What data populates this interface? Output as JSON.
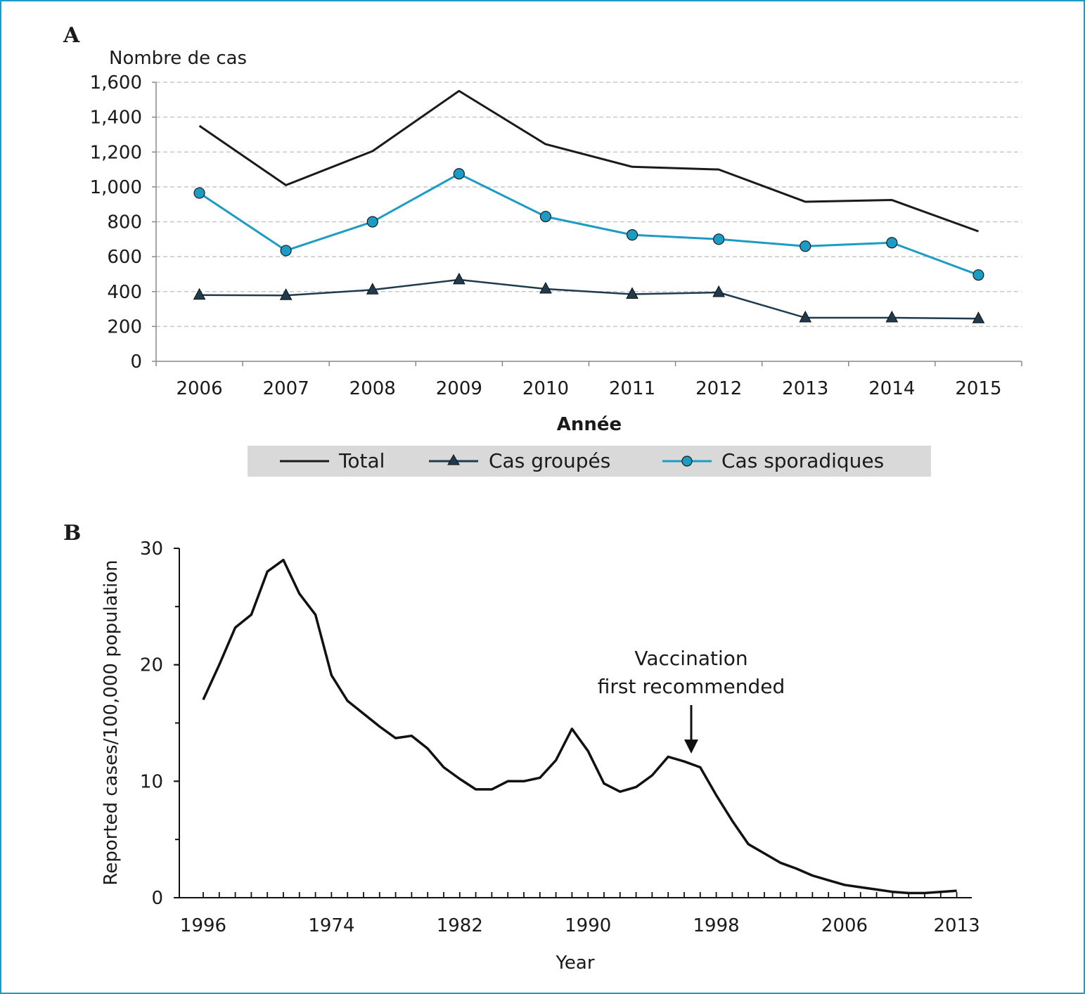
{
  "chart_data": [
    {
      "panel": "A",
      "type": "line",
      "xlabel": "Année",
      "ylabel": "Nombre de cas",
      "categories": [
        "2006",
        "2007",
        "2008",
        "2009",
        "2010",
        "2011",
        "2012",
        "2013",
        "2014",
        "2015"
      ],
      "ylim": [
        0,
        1600
      ],
      "yticks": [
        "0",
        "200",
        "400",
        "600",
        "800",
        "1,000",
        "1,200",
        "1,400",
        "1,600"
      ],
      "ytick_values": [
        0,
        200,
        400,
        600,
        800,
        1000,
        1200,
        1400,
        1600
      ],
      "grid": "horizontal dashed",
      "legend_position": "bottom",
      "series": [
        {
          "name": "Total",
          "marker": "none",
          "color": "#1a1a1a",
          "values": [
            1350,
            1010,
            1205,
            1550,
            1245,
            1115,
            1100,
            915,
            925,
            745
          ]
        },
        {
          "name": "Cas groupés",
          "marker": "triangle",
          "color": "#1f3b4d",
          "values": [
            380,
            378,
            410,
            468,
            415,
            385,
            395,
            250,
            250,
            245
          ]
        },
        {
          "name": "Cas sporadiques",
          "marker": "circle",
          "color": "#1c9cc4",
          "values": [
            965,
            635,
            800,
            1075,
            830,
            725,
            700,
            660,
            680,
            495
          ]
        }
      ]
    },
    {
      "panel": "B",
      "type": "line",
      "xlabel": "Year",
      "ylabel": "Reported cases/100,000 population",
      "xtick_labels": [
        "1996",
        "1974",
        "1982",
        "1990",
        "1998",
        "2006",
        "2013"
      ],
      "ylim": [
        0,
        30
      ],
      "yticks": [
        "0",
        "10",
        "20",
        "30"
      ],
      "ytick_values": [
        0,
        10,
        20,
        30
      ],
      "grid": "off",
      "annotation": {
        "line1": "Vaccination",
        "line2": "first recommended",
        "index": 30
      },
      "series": [
        {
          "name": "",
          "color": "#111111",
          "values": [
            17.0,
            20.0,
            23.2,
            24.3,
            28.0,
            29.0,
            26.1,
            24.3,
            19.1,
            16.9,
            15.8,
            14.7,
            13.7,
            13.9,
            12.8,
            11.2,
            10.2,
            9.3,
            9.3,
            10.0,
            10.0,
            10.3,
            11.8,
            14.5,
            12.6,
            9.8,
            9.1,
            9.5,
            10.5,
            12.1,
            11.7,
            11.2,
            8.8,
            6.6,
            4.6,
            3.8,
            3.0,
            2.5,
            1.9,
            1.5,
            1.1,
            0.9,
            0.7,
            0.5,
            0.4,
            0.4,
            0.5,
            0.6
          ]
        }
      ]
    }
  ],
  "panels": {
    "a_letter": "A",
    "b_letter": "B"
  },
  "colors": {
    "frame_border": "#1c9cc4",
    "legend_background": "#d9d9d9",
    "gridline": "#c8c8c8"
  }
}
